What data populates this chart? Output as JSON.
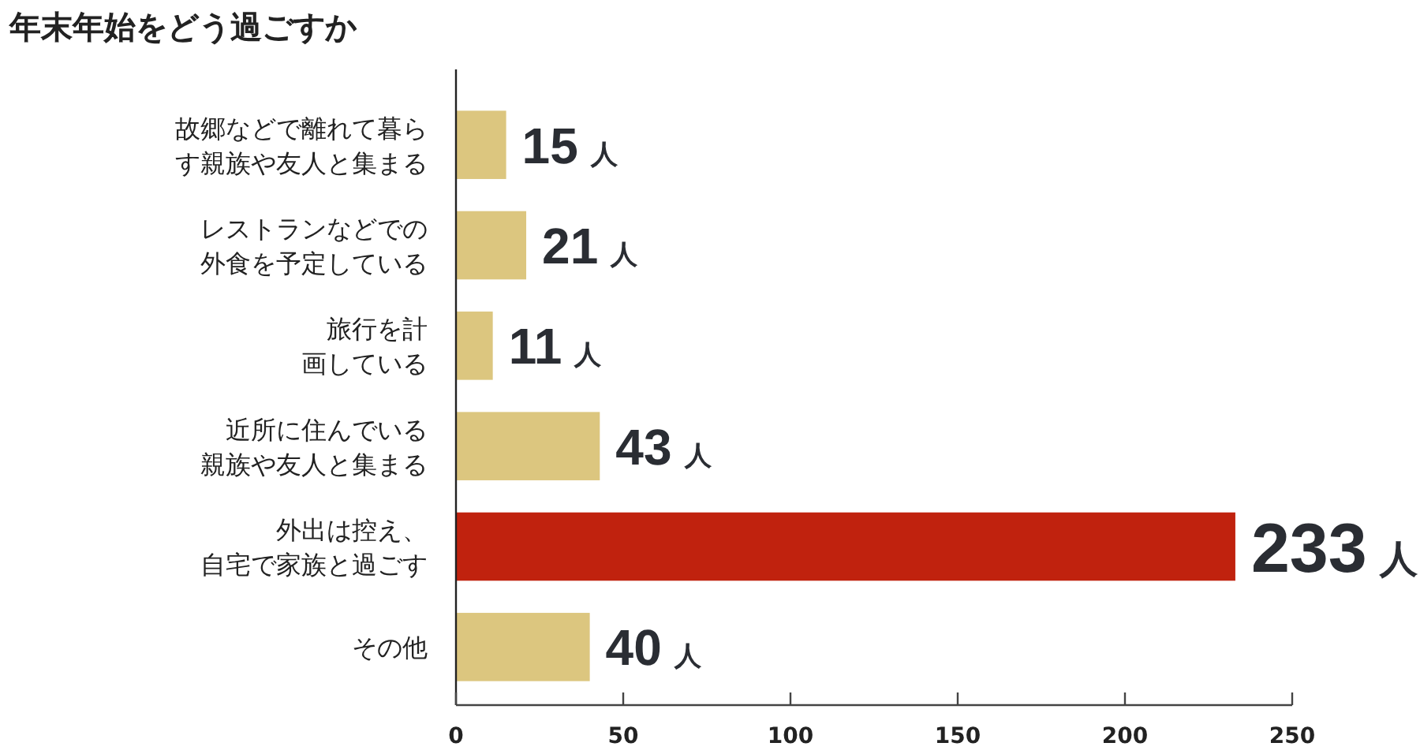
{
  "chart_data": {
    "type": "bar",
    "orientation": "horizontal",
    "title": "年末年始をどう過ごすか",
    "categories": [
      "故郷などで離れて暮らす親族や友人と集まる",
      "レストランなどでの外食を予定している",
      "旅行を計画している",
      "近所に住んでいる親族や友人と集まる",
      "外出は控え、自宅で家族と過ごす",
      "その他"
    ],
    "values": [
      15,
      21,
      11,
      43,
      233,
      40
    ],
    "colors": [
      "#dcc67f",
      "#dcc67f",
      "#dcc67f",
      "#dcc67f",
      "#c0220e",
      "#dcc67f"
    ],
    "value_labels": [
      "15 人",
      "21 人",
      "11 人",
      "43 人",
      "233 人",
      "40 人"
    ],
    "xlim": [
      0,
      250
    ],
    "xticks": [
      0,
      50,
      100,
      150,
      200,
      250
    ],
    "grid": false
  }
}
